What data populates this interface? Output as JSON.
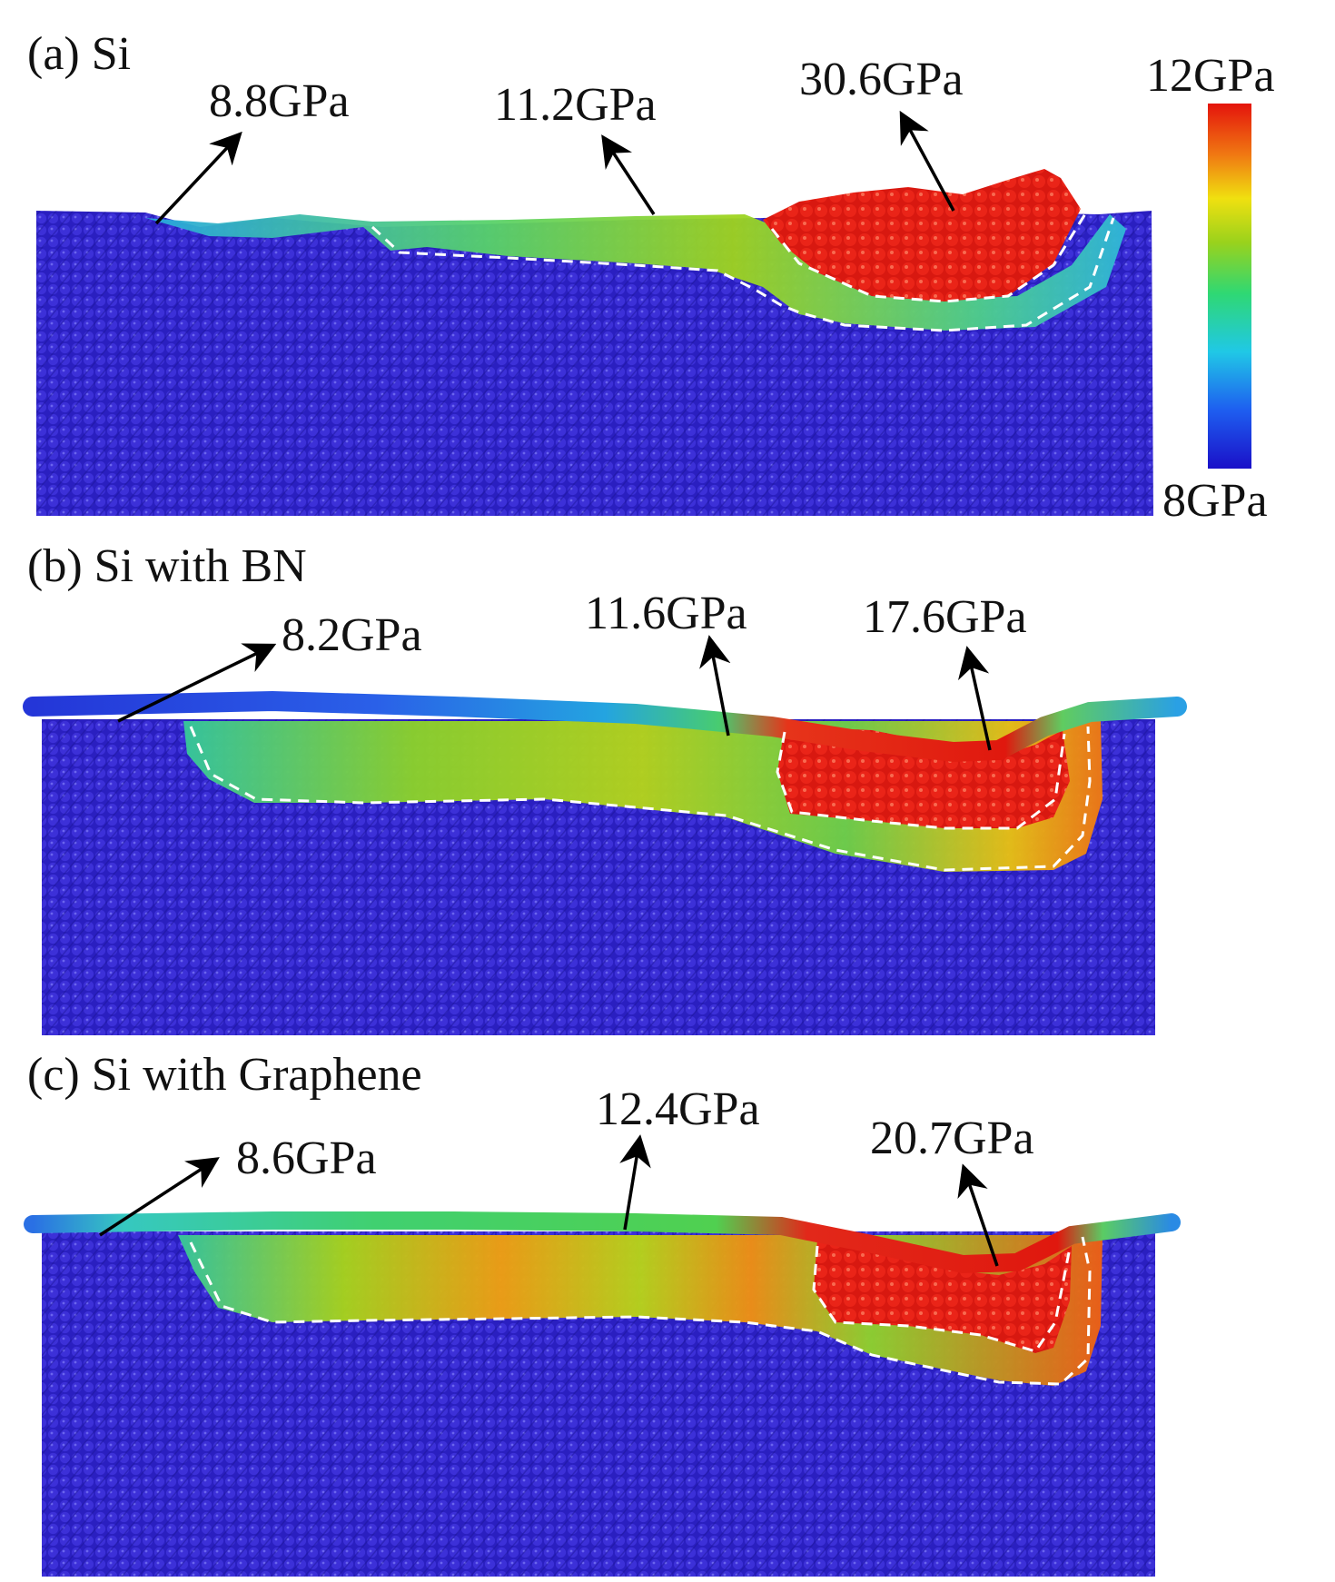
{
  "figure": {
    "panels": [
      {
        "id": "a",
        "title": "(a) Si",
        "annotations": [
          {
            "text": "8.8GPa",
            "target": "surface-left"
          },
          {
            "text": "11.2GPa",
            "target": "shear-band-middle"
          },
          {
            "text": "30.6GPa",
            "target": "chip-front"
          }
        ]
      },
      {
        "id": "b",
        "title": "(b) Si with BN",
        "annotations": [
          {
            "text": "8.2GPa",
            "target": "coating-left"
          },
          {
            "text": "11.6GPa",
            "target": "coating-middle"
          },
          {
            "text": "17.6GPa",
            "target": "indent-front"
          }
        ]
      },
      {
        "id": "c",
        "title": "(c) Si with Graphene",
        "annotations": [
          {
            "text": "8.6GPa",
            "target": "coating-left"
          },
          {
            "text": "12.4GPa",
            "target": "coating-middle"
          },
          {
            "text": "20.7GPa",
            "target": "indent-front"
          }
        ]
      }
    ],
    "colorbar": {
      "max_label": "12GPa",
      "min_label": "8GPa",
      "colors": [
        "#1a10c8",
        "#1e5ef0",
        "#20c8e6",
        "#2fd873",
        "#9ad21c",
        "#f0e010",
        "#f07812",
        "#e4140c"
      ]
    },
    "colors": {
      "substrate": "#2a1fc0",
      "red_zone": "#df1a10",
      "boundary": "#ffffff",
      "arrow": "#000000"
    }
  }
}
